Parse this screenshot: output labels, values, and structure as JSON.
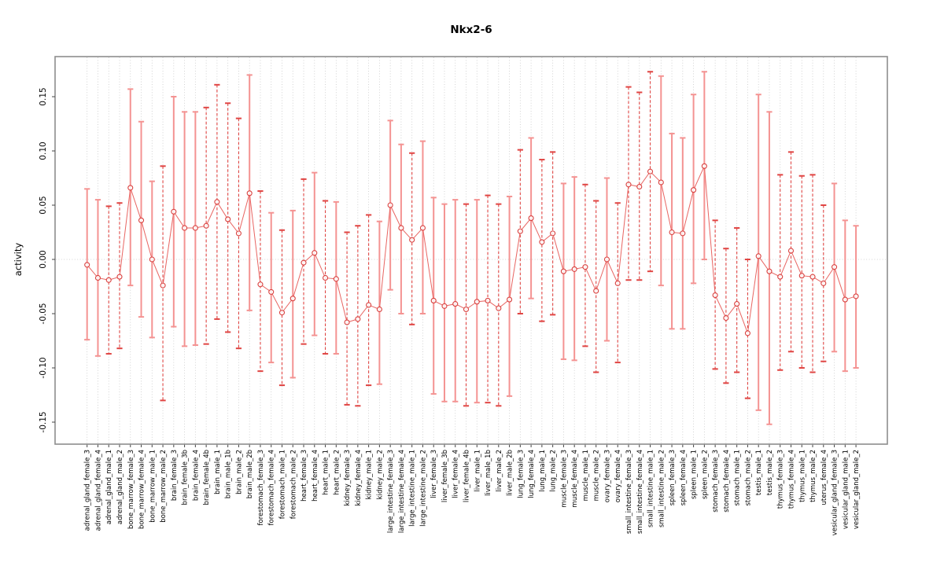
{
  "chart_data": {
    "type": "scatter",
    "title": "Nkx2-6",
    "xlabel": "",
    "ylabel": "activity",
    "ylim": [
      -0.17,
      0.185
    ],
    "yticks": [
      0.15,
      0.1,
      0.05,
      0.0,
      -0.05,
      -0.1,
      -0.15
    ],
    "ytick_labels": [
      "0.15",
      "0.10",
      "0.05",
      "0.00",
      "-0.05",
      "-0.10",
      "-0.15"
    ],
    "grid": {
      "vertical_dotted_per_category": true,
      "horizontal_dotted_at_zero": true
    },
    "legend_position": "none",
    "categories": [
      "adrenal_gland_female_3",
      "adrenal_gland_female_4",
      "adrenal_gland_male_1",
      "adrenal_gland_male_2",
      "bone_marrow_female_3",
      "bone_marrow_female_4",
      "bone_marrow_male_1",
      "bone_marrow_male_2",
      "brain_female_3",
      "brain_female_3b",
      "brain_female_4",
      "brain_female_4b",
      "brain_male_1",
      "brain_male_1b",
      "brain_male_2",
      "brain_male_2b",
      "forestomach_female_3",
      "forestomach_female_4",
      "forestomach_male_1",
      "forestomach_male_2",
      "heart_female_3",
      "heart_female_4",
      "heart_male_1",
      "heart_male_2",
      "kidney_female_3",
      "kidney_female_4",
      "kidney_male_1",
      "kidney_male_2",
      "large_intestine_female_3",
      "large_intestine_female_4",
      "large_intestine_male_1",
      "large_intestine_male_2",
      "liver_female_3",
      "liver_female_3b",
      "liver_female_4",
      "liver_female_4b",
      "liver_male_1",
      "liver_male_1b",
      "liver_male_2",
      "liver_male_2b",
      "lung_female_3",
      "lung_female_4",
      "lung_male_1",
      "lung_male_2",
      "muscle_female_3",
      "muscle_female_4",
      "muscle_male_1",
      "muscle_male_2",
      "ovary_female_3",
      "ovary_female_4",
      "small_intestine_female_3",
      "small_intestine_female_4",
      "small_intestine_male_1",
      "small_intestine_male_2",
      "spleen_female_3",
      "spleen_female_4",
      "spleen_male_1",
      "spleen_male_2",
      "stomach_female_3",
      "stomach_female_4",
      "stomach_male_1",
      "stomach_male_2",
      "testis_male_1",
      "testis_male_2",
      "thymus_female_3",
      "thymus_female_4",
      "thymus_male_1",
      "thymus_male_2",
      "uterus_female_4",
      "vesicular_gland_female_3",
      "vesicular_gland_male_1",
      "vesicular_gland_male_2"
    ],
    "series": [
      {
        "name": "activity",
        "values": [
          -0.005,
          -0.017,
          -0.019,
          -0.016,
          0.066,
          0.036,
          0.0,
          -0.024,
          0.044,
          0.029,
          0.029,
          0.031,
          0.053,
          0.037,
          0.024,
          0.061,
          -0.023,
          -0.03,
          -0.049,
          -0.036,
          -0.003,
          0.006,
          -0.017,
          -0.018,
          -0.058,
          -0.055,
          -0.042,
          -0.046,
          0.05,
          0.029,
          0.018,
          0.029,
          -0.038,
          -0.043,
          -0.041,
          -0.046,
          -0.039,
          -0.038,
          -0.045,
          -0.037,
          0.026,
          0.038,
          0.016,
          0.024,
          -0.011,
          -0.009,
          -0.007,
          -0.029,
          0.0,
          -0.022,
          0.069,
          0.067,
          0.081,
          0.071,
          0.025,
          0.024,
          0.064,
          0.086,
          -0.033,
          -0.054,
          -0.041,
          -0.068,
          0.003,
          -0.011,
          -0.016,
          0.008,
          -0.015,
          -0.016,
          -0.022,
          -0.007,
          -0.037,
          -0.034
        ],
        "lower": [
          -0.074,
          -0.089,
          -0.087,
          -0.082,
          -0.024,
          -0.053,
          -0.072,
          -0.13,
          -0.062,
          -0.08,
          -0.079,
          -0.078,
          -0.055,
          -0.067,
          -0.082,
          -0.047,
          -0.103,
          -0.095,
          -0.116,
          -0.109,
          -0.078,
          -0.07,
          -0.087,
          -0.087,
          -0.134,
          -0.135,
          -0.116,
          -0.115,
          -0.028,
          -0.05,
          -0.06,
          -0.05,
          -0.124,
          -0.131,
          -0.131,
          -0.135,
          -0.132,
          -0.132,
          -0.135,
          -0.126,
          -0.05,
          -0.036,
          -0.057,
          -0.051,
          -0.092,
          -0.093,
          -0.08,
          -0.104,
          -0.075,
          -0.095,
          -0.019,
          -0.019,
          -0.011,
          -0.024,
          -0.064,
          -0.064,
          -0.022,
          0.0,
          -0.101,
          -0.114,
          -0.104,
          -0.128,
          -0.139,
          -0.152,
          -0.102,
          -0.085,
          -0.1,
          -0.104,
          -0.094,
          -0.085,
          -0.103,
          -0.1
        ],
        "upper": [
          0.065,
          0.055,
          0.049,
          0.052,
          0.157,
          0.127,
          0.072,
          0.086,
          0.15,
          0.136,
          0.136,
          0.14,
          0.161,
          0.144,
          0.13,
          0.17,
          0.063,
          0.043,
          0.027,
          0.045,
          0.074,
          0.08,
          0.054,
          0.053,
          0.025,
          0.031,
          0.041,
          0.035,
          0.128,
          0.106,
          0.098,
          0.109,
          0.057,
          0.051,
          0.055,
          0.051,
          0.055,
          0.059,
          0.051,
          0.058,
          0.101,
          0.112,
          0.092,
          0.099,
          0.07,
          0.076,
          0.069,
          0.054,
          0.075,
          0.052,
          0.159,
          0.154,
          0.173,
          0.169,
          0.116,
          0.112,
          0.152,
          0.173,
          0.036,
          0.01,
          0.029,
          0.0,
          0.152,
          0.136,
          0.078,
          0.099,
          0.077,
          0.078,
          0.05,
          0.07,
          0.036,
          0.031
        ],
        "bar_styles": [
          "solid",
          "solid",
          "dashed",
          "dashed",
          "solid",
          "solid",
          "solid",
          "dashed",
          "solid",
          "solid",
          "solid",
          "dashed",
          "dashed",
          "dashed",
          "dashed",
          "solid",
          "dashed",
          "solid",
          "dashed",
          "solid",
          "dashed",
          "solid",
          "dashed",
          "solid",
          "dashed",
          "dashed",
          "dashed",
          "solid",
          "solid",
          "solid",
          "dashed",
          "solid",
          "solid",
          "solid",
          "solid",
          "dashed",
          "solid",
          "dashed",
          "dashed",
          "solid",
          "dashed",
          "solid",
          "dashed",
          "dashed",
          "solid",
          "solid",
          "dashed",
          "dashed",
          "solid",
          "dashed",
          "dashed",
          "dashed",
          "dashed",
          "solid",
          "solid",
          "solid",
          "solid",
          "solid",
          "dashed",
          "dashed",
          "dashed",
          "dashed",
          "solid",
          "solid",
          "dashed",
          "dashed",
          "dashed",
          "dashed",
          "dashed",
          "solid",
          "solid",
          "solid"
        ]
      }
    ]
  },
  "colors": {
    "point_stroke": "#d9403e",
    "connect_line": "#e86562",
    "bar_solid": "#f49392",
    "bar_dashed": "#e04543",
    "grid": "#c8c8c8",
    "zero_line": "#c8c8c8",
    "box_border": "#8e8e8e",
    "tick": "#444444",
    "text": "#000000"
  }
}
